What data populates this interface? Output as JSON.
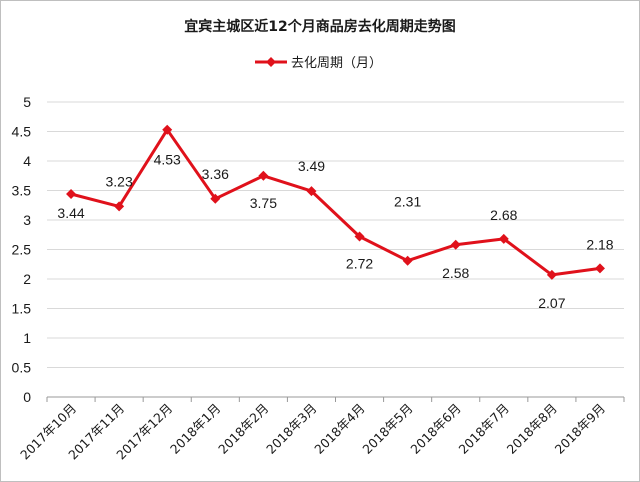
{
  "chart_data": {
    "type": "line",
    "title": "宜宾主城区近12个月商品房去化周期走势图",
    "categories": [
      "2017年10月",
      "2017年11月",
      "2017年12月",
      "2018年1月",
      "2018年2月",
      "2018年3月",
      "2018年4月",
      "2018年5月",
      "2018年6月",
      "2018年7月",
      "2018年8月",
      "2018年9月"
    ],
    "series": [
      {
        "name": "去化周期（月）",
        "values": [
          3.44,
          3.23,
          4.53,
          3.36,
          3.75,
          3.49,
          2.72,
          2.31,
          2.58,
          2.68,
          2.07,
          2.18
        ]
      }
    ],
    "yticks": [
      "0",
      "0.5",
      "1",
      "1.5",
      "2",
      "2.5",
      "3",
      "3.5",
      "4",
      "4.5",
      "5"
    ],
    "ylim": [
      0,
      5
    ],
    "xlabel": "",
    "ylabel": "",
    "grid": true,
    "legend": "top-center",
    "colors": {
      "line": "#e0111b",
      "grid": "#d9d9d9",
      "axis": "#999999"
    }
  }
}
